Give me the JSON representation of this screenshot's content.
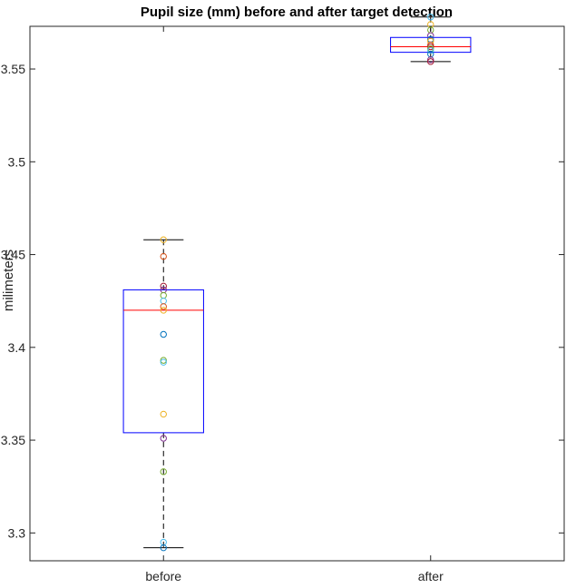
{
  "chart_data": {
    "type": "box",
    "title": "Pupil size (mm) before and after target detection",
    "xlabel": "",
    "ylabel": "milimeters",
    "ylim": [
      3.285,
      3.573
    ],
    "yticks": [
      "3.3",
      "3.35",
      "3.4",
      "3.45",
      "3.5",
      "3.55"
    ],
    "categories": [
      "before",
      "after"
    ],
    "grid": false,
    "legend": "none",
    "boxes": [
      {
        "category": "before",
        "whisker_low": 3.292,
        "q1": 3.354,
        "median": 3.42,
        "q3": 3.431,
        "whisker_high": 3.458,
        "points": [
          {
            "y": 3.458,
            "color": "#EDB120"
          },
          {
            "y": 3.449,
            "color": "#D95319"
          },
          {
            "y": 3.433,
            "color": "#A2142F"
          },
          {
            "y": 3.431,
            "color": "#7E2F8E"
          },
          {
            "y": 3.428,
            "color": "#77AC30"
          },
          {
            "y": 3.425,
            "color": "#4DBEEE"
          },
          {
            "y": 3.422,
            "color": "#D95319"
          },
          {
            "y": 3.42,
            "color": "#EDB120"
          },
          {
            "y": 3.407,
            "color": "#0072BD"
          },
          {
            "y": 3.393,
            "color": "#77AC30"
          },
          {
            "y": 3.392,
            "color": "#4DBEEE"
          },
          {
            "y": 3.364,
            "color": "#EDB120"
          },
          {
            "y": 3.351,
            "color": "#7E2F8E"
          },
          {
            "y": 3.333,
            "color": "#77AC30"
          },
          {
            "y": 3.295,
            "color": "#4DBEEE"
          },
          {
            "y": 3.292,
            "color": "#0072BD"
          }
        ]
      },
      {
        "category": "after",
        "whisker_low": 3.554,
        "q1": 3.559,
        "median": 3.562,
        "q3": 3.567,
        "whisker_high": 3.578,
        "points": [
          {
            "y": 3.578,
            "color": "#4DBEEE"
          },
          {
            "y": 3.574,
            "color": "#EDB120"
          },
          {
            "y": 3.571,
            "color": "#77AC30"
          },
          {
            "y": 3.568,
            "color": "#7E2F8E"
          },
          {
            "y": 3.566,
            "color": "#0072BD"
          },
          {
            "y": 3.565,
            "color": "#EDB120"
          },
          {
            "y": 3.563,
            "color": "#D95319"
          },
          {
            "y": 3.562,
            "color": "#A2142F"
          },
          {
            "y": 3.561,
            "color": "#77AC30"
          },
          {
            "y": 3.56,
            "color": "#4DBEEE"
          },
          {
            "y": 3.558,
            "color": "#0072BD"
          },
          {
            "y": 3.555,
            "color": "#7E2F8E"
          },
          {
            "y": 3.554,
            "color": "#A2142F"
          }
        ]
      }
    ],
    "colors": {
      "box": "#0000FF",
      "median": "#FF0000",
      "whisker": "#000000",
      "axis": "#262626"
    }
  }
}
